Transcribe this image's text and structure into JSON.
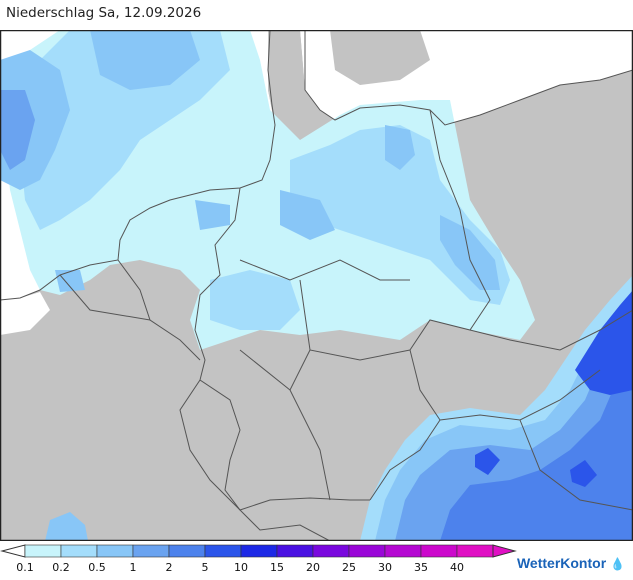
{
  "title": "Niederschlag Sa, 12.09.2026",
  "brand": {
    "name": "WetterKontor",
    "icon": "raindrops-icon"
  },
  "colors": {
    "land": "#c3c3c3",
    "sea": "#ffffff",
    "border": "#555555"
  },
  "legend": {
    "classes": [
      {
        "label": "0.1",
        "color": "#c8f4fb"
      },
      {
        "label": "0.2",
        "color": "#a4ddfb"
      },
      {
        "label": "0.5",
        "color": "#88c6f7"
      },
      {
        "label": "1",
        "color": "#6aa3f0"
      },
      {
        "label": "2",
        "color": "#4d82ec"
      },
      {
        "label": "5",
        "color": "#2b55ea"
      },
      {
        "label": "10",
        "color": "#1d29e6"
      },
      {
        "label": "15",
        "color": "#4a11e2"
      },
      {
        "label": "20",
        "color": "#7a08de"
      },
      {
        "label": "25",
        "color": "#9a06d8"
      },
      {
        "label": "30",
        "color": "#b508d2"
      },
      {
        "label": "35",
        "color": "#cc08cc"
      },
      {
        "label": "40",
        "color": "#e010c4"
      }
    ]
  }
}
